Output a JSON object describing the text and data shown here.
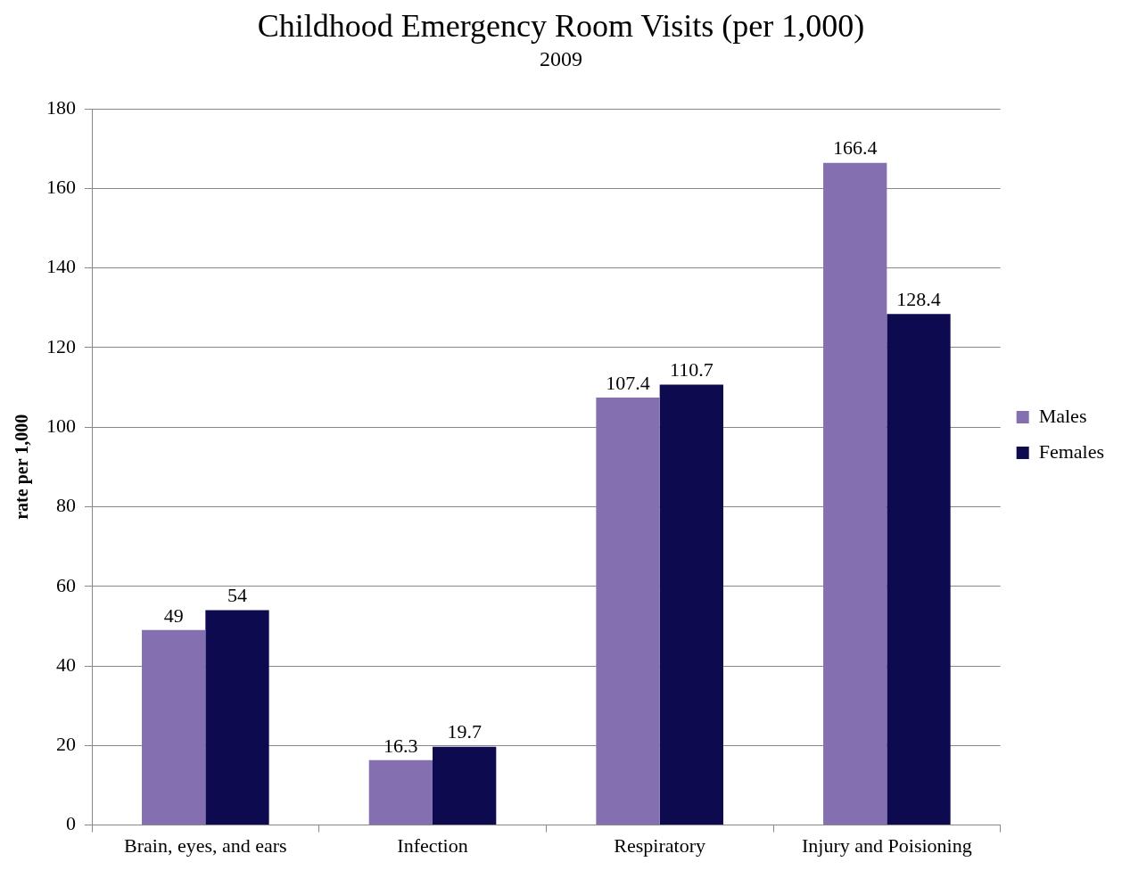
{
  "chart_data": {
    "type": "bar",
    "title": "Childhood Emergency Room Visits (per 1,000)",
    "subtitle": "2009",
    "ylabel": "rate per 1,000",
    "categories": [
      "Brain, eyes, and ears",
      "Infection",
      "Respiratory",
      "Injury and Poisioning"
    ],
    "series": [
      {
        "name": "Males",
        "color": "#8470b0",
        "values": [
          49,
          16.3,
          107.4,
          166.4
        ]
      },
      {
        "name": "Females",
        "color": "#0d0a50",
        "values": [
          54,
          19.7,
          110.7,
          128.4
        ]
      }
    ],
    "ylim": [
      0,
      180
    ],
    "yticks": [
      0,
      20,
      40,
      60,
      80,
      100,
      120,
      140,
      160,
      180
    ],
    "grid": "y",
    "legend": "right",
    "data_labels": true
  }
}
